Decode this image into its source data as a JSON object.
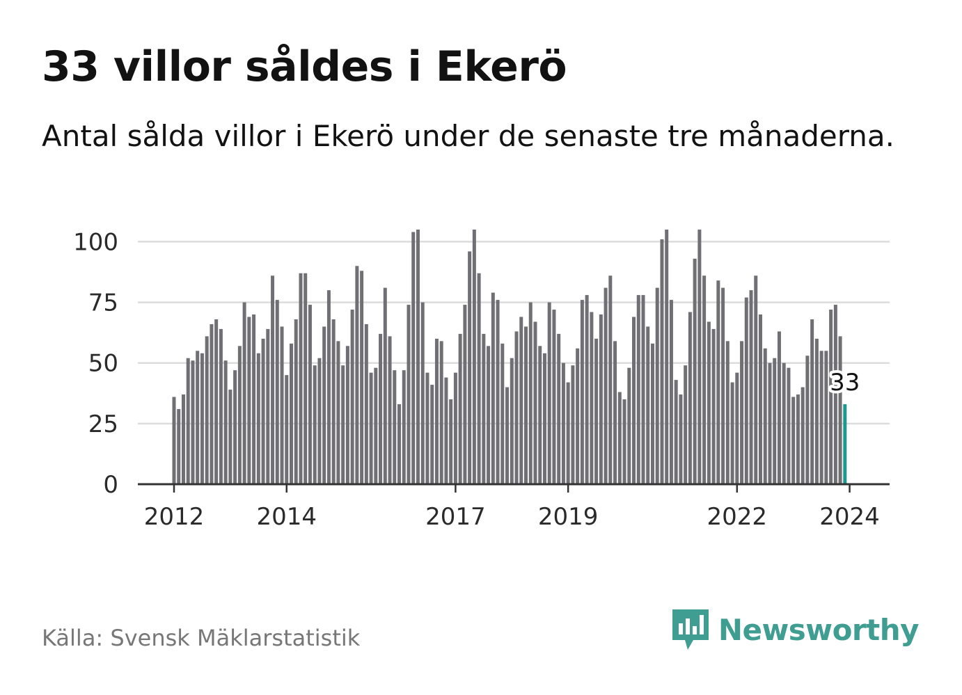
{
  "header": {
    "title": "33 villor såldes i Ekerö",
    "subtitle": "Antal sålda villor i Ekerö under de senaste tre månaderna."
  },
  "footer": {
    "source": "Källa: Svensk Mäklarstatistik",
    "brand": "Newsworthy"
  },
  "colors": {
    "bar": "#707074",
    "highlight": "#1a9a8e",
    "grid": "#dcdcdc",
    "axis": "#333333",
    "brand": "#3f9d91"
  },
  "chart_data": {
    "type": "bar",
    "title": "33 villor såldes i Ekerö",
    "subtitle": "Antal sålda villor i Ekerö under de senaste tre månaderna.",
    "xlabel": "",
    "ylabel": "",
    "ylim": [
      0,
      105
    ],
    "yticks": [
      0,
      25,
      50,
      75,
      100
    ],
    "xticks": [
      {
        "label": "2012",
        "index": 0
      },
      {
        "label": "2014",
        "index": 24
      },
      {
        "label": "2017",
        "index": 60
      },
      {
        "label": "2019",
        "index": 84
      },
      {
        "label": "2022",
        "index": 120
      },
      {
        "label": "2024",
        "index": 144
      }
    ],
    "start": "2012-01",
    "frequency": "monthly",
    "values": [
      36,
      31,
      37,
      52,
      51,
      55,
      54,
      61,
      66,
      68,
      64,
      51,
      39,
      47,
      57,
      75,
      69,
      70,
      54,
      60,
      64,
      86,
      76,
      65,
      45,
      58,
      68,
      87,
      87,
      74,
      49,
      52,
      65,
      80,
      68,
      59,
      49,
      57,
      72,
      90,
      88,
      66,
      46,
      48,
      62,
      81,
      61,
      47,
      33,
      47,
      74,
      104,
      105,
      75,
      46,
      41,
      60,
      59,
      44,
      35,
      46,
      62,
      74,
      96,
      105,
      87,
      62,
      57,
      79,
      76,
      58,
      40,
      52,
      63,
      69,
      65,
      75,
      67,
      57,
      54,
      75,
      72,
      62,
      50,
      42,
      49,
      56,
      76,
      78,
      71,
      60,
      70,
      81,
      86,
      59,
      38,
      35,
      48,
      69,
      78,
      78,
      65,
      58,
      81,
      101,
      105,
      76,
      43,
      37,
      49,
      71,
      93,
      105,
      86,
      67,
      64,
      84,
      81,
      59,
      42,
      46,
      59,
      77,
      80,
      86,
      70,
      56,
      50,
      52,
      63,
      50,
      48,
      36,
      37,
      40,
      53,
      68,
      60,
      55,
      55,
      72,
      74,
      61,
      33
    ],
    "highlight": {
      "index": 143,
      "label": "33"
    }
  }
}
